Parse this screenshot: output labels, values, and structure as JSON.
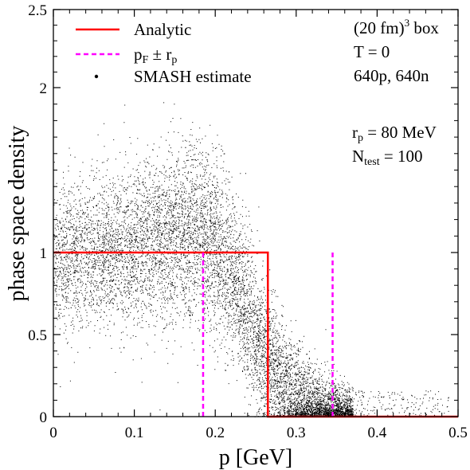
{
  "chart_data": {
    "type": "scatter",
    "xlabel": "p [GeV]",
    "ylabel": "phase space density",
    "xlim": [
      0,
      0.5
    ],
    "ylim": [
      0,
      2.5
    ],
    "x_ticks": [
      "0",
      "0.1",
      "0.2",
      "0.3",
      "0.4",
      "0.5"
    ],
    "y_ticks": [
      "0",
      "0.5",
      "1",
      "2",
      "2.5"
    ],
    "y_tick_values": [
      0,
      0.5,
      1,
      2,
      2.5
    ],
    "grid": false,
    "legend_position": "top-left",
    "series": [
      {
        "name": "Analytic",
        "style": "step-line",
        "color": "#ff0000",
        "x": [
          0,
          0.265,
          0.265,
          0.5
        ],
        "y": [
          1,
          1,
          0,
          0
        ]
      },
      {
        "name": "p_F ± r_p",
        "style": "vertical-dashed",
        "color": "#ff00ff",
        "x_positions": [
          0.185,
          0.345
        ],
        "y_range": [
          0,
          1
        ]
      },
      {
        "name": "SMASH estimate",
        "style": "dense-scatter",
        "color": "#000000",
        "sample_points": [
          [
            0.0,
            1.0
          ],
          [
            0.02,
            0.9
          ],
          [
            0.05,
            1.1
          ],
          [
            0.08,
            1.15
          ],
          [
            0.1,
            1.2
          ],
          [
            0.12,
            1.1
          ],
          [
            0.15,
            1.05
          ],
          [
            0.18,
            1.0
          ],
          [
            0.2,
            0.85
          ],
          [
            0.22,
            0.7
          ],
          [
            0.24,
            0.55
          ],
          [
            0.26,
            0.4
          ],
          [
            0.28,
            0.28
          ],
          [
            0.3,
            0.18
          ],
          [
            0.32,
            0.1
          ],
          [
            0.34,
            0.04
          ],
          [
            0.36,
            0.01
          ],
          [
            0.4,
            0.0
          ],
          [
            0.5,
            0.0
          ]
        ]
      }
    ],
    "legend": {
      "analytic": "Analytic",
      "pf_main": "p",
      "pf_sub": "F",
      "pf_mid": " ± r",
      "pf_sub2": "p",
      "smash": "SMASH estimate"
    },
    "annotations": {
      "box_main": "(20 fm)",
      "box_sup": "3",
      "box_tail": " box",
      "temp": "T = 0",
      "particles": "640p, 640n",
      "rp_main": "r",
      "rp_sub": "p",
      "rp_tail": " = 80 MeV",
      "ntest_main": "N",
      "ntest_sub": "test",
      "ntest_tail": " = 100"
    }
  }
}
